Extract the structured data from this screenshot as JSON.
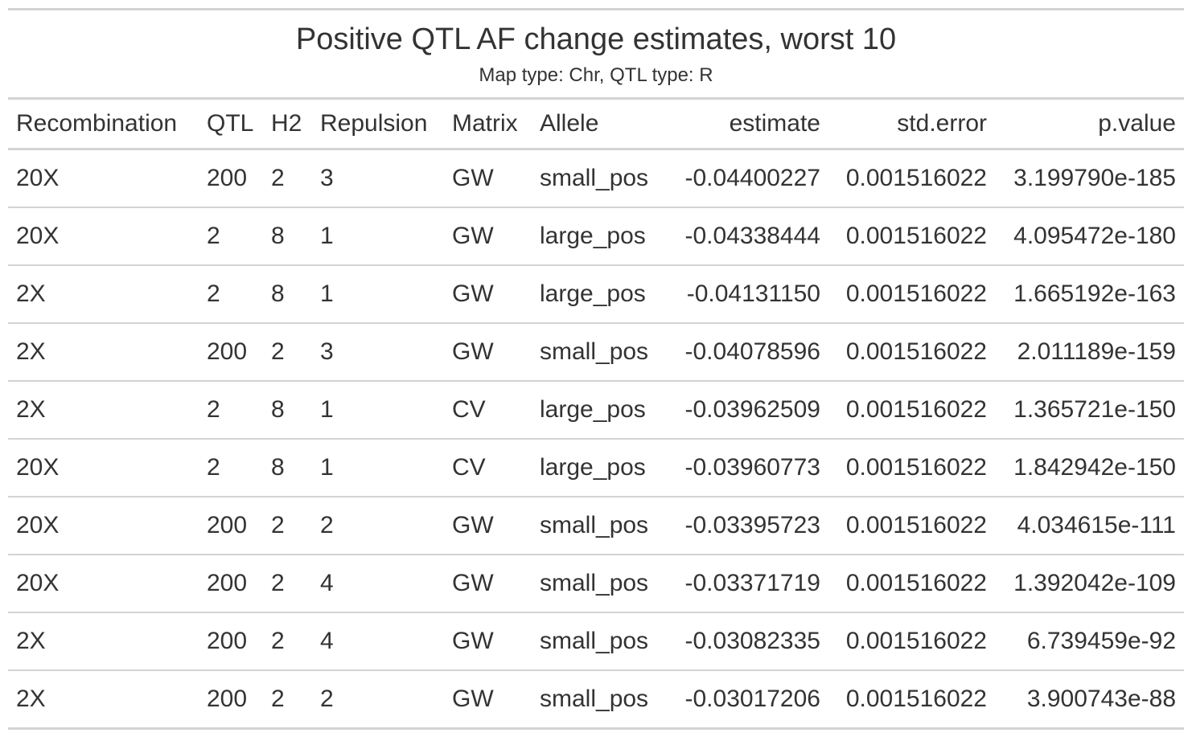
{
  "title": "Positive QTL AF change estimates, worst 10",
  "subtitle": "Map type: Chr, QTL type: R",
  "columns": [
    "Recombination",
    "QTL",
    "H2",
    "Repulsion",
    "Matrix",
    "Allele",
    "estimate",
    "std.error",
    "p.value"
  ],
  "rows": [
    [
      "20X",
      "200",
      "2",
      "3",
      "GW",
      "small_pos",
      "-0.04400227",
      "0.001516022",
      "3.199790e-185"
    ],
    [
      "20X",
      "2",
      "8",
      "1",
      "GW",
      "large_pos",
      "-0.04338444",
      "0.001516022",
      "4.095472e-180"
    ],
    [
      "2X",
      "2",
      "8",
      "1",
      "GW",
      "large_pos",
      "-0.04131150",
      "0.001516022",
      "1.665192e-163"
    ],
    [
      "2X",
      "200",
      "2",
      "3",
      "GW",
      "small_pos",
      "-0.04078596",
      "0.001516022",
      "2.011189e-159"
    ],
    [
      "2X",
      "2",
      "8",
      "1",
      "CV",
      "large_pos",
      "-0.03962509",
      "0.001516022",
      "1.365721e-150"
    ],
    [
      "20X",
      "2",
      "8",
      "1",
      "CV",
      "large_pos",
      "-0.03960773",
      "0.001516022",
      "1.842942e-150"
    ],
    [
      "20X",
      "200",
      "2",
      "2",
      "GW",
      "small_pos",
      "-0.03395723",
      "0.001516022",
      "4.034615e-111"
    ],
    [
      "20X",
      "200",
      "2",
      "4",
      "GW",
      "small_pos",
      "-0.03371719",
      "0.001516022",
      "1.392042e-109"
    ],
    [
      "2X",
      "200",
      "2",
      "4",
      "GW",
      "small_pos",
      "-0.03082335",
      "0.001516022",
      "6.739459e-92"
    ],
    [
      "2X",
      "200",
      "2",
      "2",
      "GW",
      "small_pos",
      "-0.03017206",
      "0.001516022",
      "3.900743e-88"
    ]
  ]
}
